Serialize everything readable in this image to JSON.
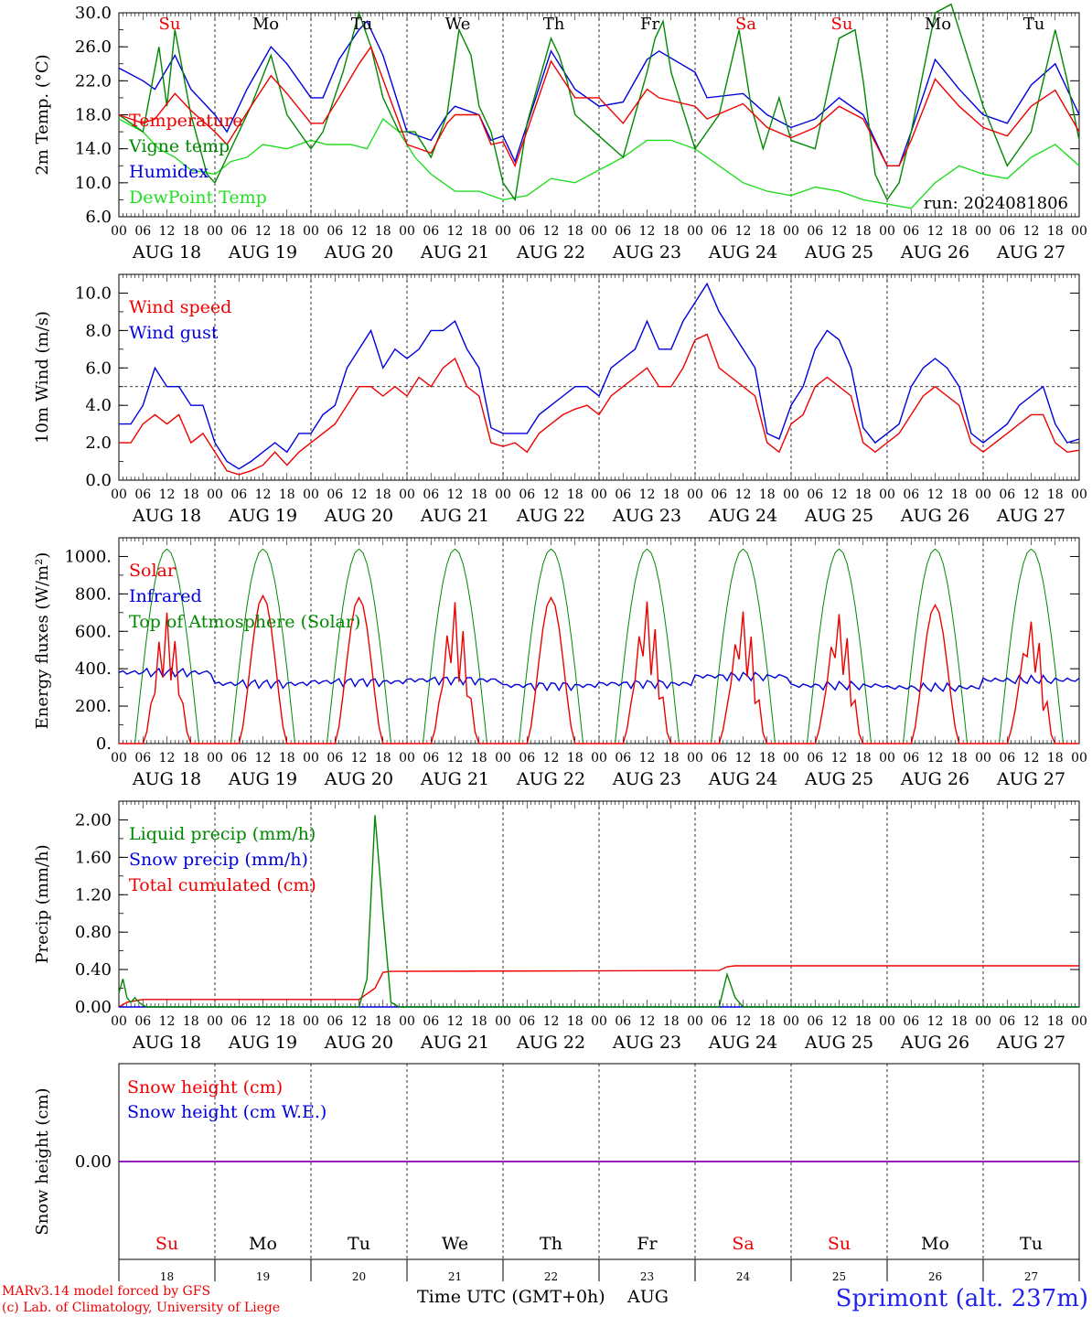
{
  "days": [
    "AUG 18",
    "AUG 19",
    "AUG 20",
    "AUG 21",
    "AUG 22",
    "AUG 23",
    "AUG 24",
    "AUG 25",
    "AUG 26",
    "AUG 27"
  ],
  "hours": [
    "00",
    "06",
    "12",
    "18"
  ],
  "end_hour": "00",
  "weekdays": [
    {
      "label": "Su",
      "weekend": true
    },
    {
      "label": "Mo",
      "weekend": false
    },
    {
      "label": "Tu",
      "weekend": false
    },
    {
      "label": "We",
      "weekend": false
    },
    {
      "label": "Th",
      "weekend": false
    },
    {
      "label": "Fr",
      "weekend": false
    },
    {
      "label": "Sa",
      "weekend": true
    },
    {
      "label": "Su",
      "weekend": true
    },
    {
      "label": "Mo",
      "weekend": false
    },
    {
      "label": "Tu",
      "weekend": false
    }
  ],
  "day_numbers": [
    "18",
    "19",
    "20",
    "21",
    "22",
    "23",
    "24",
    "25",
    "26",
    "27"
  ],
  "colors": {
    "red": "#ee0000",
    "green": "#008800",
    "blue": "#0000dd",
    "lightgreen": "#22dd22",
    "purple": "#9900aa"
  },
  "footer": {
    "model": "MARv3.14 model forced by GFS",
    "lab": "(c) Lab. of Climatology, University of Liege",
    "time_label": "Time UTC (GMT+0h)",
    "month": "AUG",
    "station": "Sprimont (alt. 237m)"
  },
  "run_label": "run: 2024081806",
  "chart_data": [
    {
      "id": "temp",
      "type": "line",
      "ylabel": "2m Temp. (°C)",
      "ylim": [
        6,
        30
      ],
      "yticks": [
        "6.0",
        "10.0",
        "14.0",
        "18.0",
        "22.0",
        "26.0",
        "30.0"
      ],
      "x_hours_range": [
        0,
        240
      ],
      "series": [
        {
          "name": "Temperature",
          "color": "red",
          "x": [
            0,
            6,
            9,
            14,
            18,
            24,
            27,
            33,
            38,
            42,
            48,
            51,
            55,
            60,
            63,
            72,
            78,
            82,
            84,
            90,
            93,
            96,
            99,
            108,
            114,
            120,
            126,
            132,
            135,
            144,
            147,
            156,
            162,
            168,
            174,
            180,
            186,
            192,
            195,
            198,
            204,
            210,
            216,
            222,
            228,
            234,
            240
          ],
          "y": [
            18,
            17,
            17.5,
            20.5,
            18.5,
            16,
            14.5,
            19,
            22.6,
            20.5,
            17,
            17,
            20,
            24,
            26,
            14.5,
            13.5,
            17,
            18,
            18,
            14.5,
            14.8,
            12,
            24.3,
            20,
            20,
            17,
            21,
            20,
            19,
            17.5,
            19.3,
            16.5,
            15.3,
            16.5,
            19,
            17.5,
            12,
            12,
            15,
            22.2,
            19,
            16.5,
            15.5,
            19,
            20.9,
            16
          ]
        },
        {
          "name": "Vigne temp",
          "color": "green",
          "x": [
            0,
            6,
            10,
            12,
            14,
            18,
            22,
            24,
            27,
            33,
            38,
            42,
            48,
            51,
            56,
            60,
            63,
            66,
            70,
            74,
            78,
            82,
            85,
            88,
            90,
            93,
            96,
            99,
            102,
            105,
            108,
            110,
            112,
            114,
            120,
            126,
            132,
            134,
            136,
            138,
            144,
            147,
            150,
            155,
            158,
            161,
            165,
            168,
            174,
            180,
            184,
            186,
            189,
            192,
            195,
            198,
            204,
            208,
            210,
            216,
            222,
            228,
            234,
            237,
            240
          ],
          "y": [
            18,
            16,
            26,
            19,
            28,
            18,
            11,
            10,
            13,
            19,
            25,
            18,
            14,
            16,
            23,
            30,
            26,
            20,
            16,
            16,
            13,
            18,
            28,
            25,
            19,
            16,
            10,
            8,
            17,
            22,
            27,
            25,
            22,
            18,
            15.5,
            13,
            23,
            27,
            29,
            23,
            14,
            16,
            18,
            28,
            19,
            14,
            20,
            15,
            14,
            27,
            28,
            22,
            11,
            8,
            10,
            16,
            30,
            31,
            28,
            19,
            12,
            16,
            28,
            22,
            15
          ]
        },
        {
          "name": "Humidex",
          "color": "blue",
          "x": [
            0,
            6,
            9,
            14,
            18,
            24,
            27,
            32,
            38,
            42,
            48,
            51,
            55,
            60,
            62,
            66,
            72,
            78,
            82,
            84,
            90,
            93,
            96,
            99,
            108,
            114,
            120,
            126,
            132,
            135,
            144,
            147,
            156,
            162,
            168,
            174,
            180,
            186,
            192,
            195,
            198,
            204,
            210,
            216,
            222,
            228,
            234,
            240
          ],
          "y": [
            23.5,
            22,
            21,
            25,
            21,
            18,
            16,
            21,
            26,
            24,
            20,
            20,
            24.5,
            28,
            29,
            25,
            16,
            15,
            18,
            19,
            18,
            15,
            15.5,
            12.5,
            25.5,
            21,
            19,
            19.5,
            24.5,
            25.5,
            23,
            20,
            20.5,
            18,
            16.5,
            17.5,
            20,
            18,
            12,
            12,
            16,
            24.5,
            21,
            18,
            17,
            21.5,
            24,
            18
          ]
        },
        {
          "name": "DewPoint Temp",
          "color": "lightgreen",
          "x": [
            0,
            6,
            10,
            14,
            18,
            24,
            28,
            32,
            36,
            42,
            48,
            52,
            58,
            62,
            66,
            70,
            74,
            78,
            84,
            90,
            96,
            102,
            108,
            114,
            120,
            126,
            132,
            138,
            144,
            150,
            156,
            162,
            168,
            174,
            180,
            186,
            192,
            198,
            204,
            210,
            216,
            222,
            228,
            234,
            240
          ],
          "y": [
            17.5,
            16,
            14,
            13,
            11.5,
            11,
            12.5,
            13,
            14.5,
            14,
            15,
            14.5,
            14.5,
            14,
            17.5,
            16,
            13,
            11,
            9,
            9,
            8,
            8.5,
            10.5,
            10,
            11.5,
            13,
            15,
            15,
            14,
            12,
            10,
            9,
            8.5,
            9.5,
            9,
            8,
            7.5,
            7,
            10,
            12,
            11,
            10.5,
            13,
            14.5,
            12
          ]
        }
      ],
      "ref_lines": []
    },
    {
      "id": "wind",
      "type": "line",
      "ylabel": "10m Wind (m/s)",
      "ylim": [
        0,
        11
      ],
      "yticks": [
        "0.0",
        "2.0",
        "4.0",
        "6.0",
        "8.0",
        "10.0"
      ],
      "x_hours_range": [
        0,
        240
      ],
      "series": [
        {
          "name": "Wind speed",
          "color": "red",
          "x": [
            0,
            3,
            6,
            9,
            12,
            15,
            18,
            21,
            24,
            27,
            30,
            33,
            36,
            39,
            42,
            45,
            48,
            51,
            54,
            57,
            60,
            63,
            66,
            69,
            72,
            75,
            78,
            81,
            84,
            87,
            90,
            93,
            96,
            99,
            102,
            105,
            108,
            111,
            114,
            117,
            120,
            123,
            126,
            129,
            132,
            135,
            138,
            141,
            144,
            147,
            150,
            153,
            156,
            159,
            162,
            165,
            168,
            171,
            174,
            177,
            180,
            183,
            186,
            189,
            192,
            195,
            198,
            201,
            204,
            207,
            210,
            213,
            216,
            219,
            222,
            225,
            228,
            231,
            234,
            237,
            240
          ],
          "y": [
            2,
            2,
            3,
            3.5,
            3,
            3.5,
            2,
            2.5,
            1.5,
            0.5,
            0.3,
            0.5,
            0.8,
            1.5,
            0.8,
            1.5,
            2,
            2.5,
            3,
            4,
            5,
            5,
            4.5,
            5,
            4.5,
            5.5,
            5,
            6,
            6.5,
            5,
            4.5,
            2,
            1.8,
            2,
            1.5,
            2.5,
            3,
            3.5,
            3.8,
            4,
            3.5,
            4.5,
            5,
            5.5,
            6,
            5,
            5,
            6,
            7.5,
            7.8,
            6,
            5.5,
            5,
            4.5,
            2,
            1.5,
            3,
            3.5,
            5,
            5.5,
            5,
            4.5,
            2,
            1.5,
            2,
            2.5,
            3.5,
            4.5,
            5,
            4.5,
            4,
            2,
            1.5,
            2,
            2.5,
            3,
            3.5,
            3.5,
            2,
            1.5,
            1.6
          ]
        },
        {
          "name": "Wind gust",
          "color": "blue",
          "x": [
            0,
            3,
            6,
            9,
            12,
            15,
            18,
            21,
            24,
            27,
            30,
            33,
            36,
            39,
            42,
            45,
            48,
            51,
            54,
            57,
            60,
            63,
            66,
            69,
            72,
            75,
            78,
            81,
            84,
            87,
            90,
            93,
            96,
            99,
            102,
            105,
            108,
            111,
            114,
            117,
            120,
            123,
            126,
            129,
            132,
            135,
            138,
            141,
            144,
            147,
            150,
            153,
            156,
            159,
            162,
            165,
            168,
            171,
            174,
            177,
            180,
            183,
            186,
            189,
            192,
            195,
            198,
            201,
            204,
            207,
            210,
            213,
            216,
            219,
            222,
            225,
            228,
            231,
            234,
            237,
            240
          ],
          "y": [
            3,
            3,
            4,
            6,
            5,
            5,
            4,
            4,
            2,
            1,
            0.6,
            1,
            1.5,
            2,
            1.5,
            2.5,
            2.5,
            3.5,
            4,
            6,
            7,
            8,
            6,
            7,
            6.5,
            7,
            8,
            8,
            8.5,
            7,
            6,
            2.8,
            2.5,
            2.5,
            2.5,
            3.5,
            4,
            4.5,
            5,
            5,
            4.5,
            6,
            6.5,
            7,
            8.5,
            7,
            7,
            8.5,
            9.5,
            10.5,
            9,
            8,
            7,
            6,
            2.5,
            2.2,
            4,
            5,
            7,
            8,
            7.5,
            6,
            2.8,
            2,
            2.5,
            3,
            5,
            6,
            6.5,
            6,
            5,
            2.5,
            2,
            2.5,
            3,
            4,
            4.5,
            5,
            3,
            2,
            2.2
          ]
        }
      ],
      "ref_lines": [
        5
      ]
    },
    {
      "id": "energy",
      "type": "line",
      "ylabel": "Energy fluxes (W/m²)",
      "ylim": [
        0,
        1100
      ],
      "yticks": [
        "0.",
        "200.",
        "400.",
        "600.",
        "800.",
        "1000."
      ],
      "x_hours_range": [
        0,
        240
      ],
      "series": [
        {
          "name": "Solar",
          "color": "red",
          "x": [],
          "y": []
        },
        {
          "name": "Infrared",
          "color": "blue",
          "x": [],
          "y": []
        },
        {
          "name": "Top of Atmosphere (Solar)",
          "color": "green",
          "x": [],
          "y": []
        }
      ],
      "diurnal": {
        "solar_peaks": [
          700,
          790,
          780,
          760,
          780,
          770,
          720,
          710,
          740,
          680
        ],
        "toa_peak": 1040,
        "sunrise": 4,
        "sunset": 20,
        "ir_baseline": [
          380,
          320,
          330,
          340,
          310,
          320,
          360,
          310,
          300,
          340
        ]
      },
      "ref_lines": []
    },
    {
      "id": "precip",
      "type": "line",
      "ylabel": "Precip (mm/h)",
      "ylim": [
        0,
        2.2
      ],
      "yticks": [
        "0.00",
        "0.40",
        "0.80",
        "1.20",
        "1.60",
        "2.00"
      ],
      "x_hours_range": [
        0,
        240
      ],
      "series": [
        {
          "name": "Liquid precip (mm/h)",
          "color": "green",
          "x": [
            0,
            1,
            2,
            3,
            4,
            5,
            6,
            7,
            8,
            9,
            10,
            60,
            62,
            64,
            66,
            68,
            70,
            72,
            150,
            152,
            154,
            156,
            158,
            240
          ],
          "y": [
            0.15,
            0.3,
            0.1,
            0.05,
            0.1,
            0.05,
            0.02,
            0,
            0,
            0,
            0,
            0,
            0.3,
            2.05,
            1,
            0.05,
            0,
            0,
            0,
            0.35,
            0.1,
            0,
            0,
            0
          ]
        },
        {
          "name": "Snow precip (mm/h)",
          "color": "blue",
          "x": [
            0,
            240
          ],
          "y": [
            0,
            0
          ]
        },
        {
          "name": "Total cumulated (cm)",
          "color": "red",
          "x": [
            0,
            2,
            6,
            60,
            64,
            66,
            68,
            150,
            152,
            154,
            240
          ],
          "y": [
            0,
            0.05,
            0.08,
            0.08,
            0.2,
            0.37,
            0.38,
            0.39,
            0.43,
            0.44,
            0.44
          ]
        }
      ],
      "ref_lines": []
    },
    {
      "id": "snow",
      "type": "line",
      "ylabel": "Snow height (cm)",
      "ylim": [
        -1,
        1
      ],
      "yticks": [
        "0.00"
      ],
      "x_hours_range": [
        0,
        240
      ],
      "series": [
        {
          "name": "Snow height (cm)",
          "color": "red",
          "x": [
            0,
            240
          ],
          "y": [
            0,
            0
          ]
        },
        {
          "name": "Snow height (cm W.E.)",
          "color": "blue",
          "x": [
            0,
            240
          ],
          "y": [
            0,
            0
          ]
        }
      ],
      "ref_lines": []
    }
  ]
}
